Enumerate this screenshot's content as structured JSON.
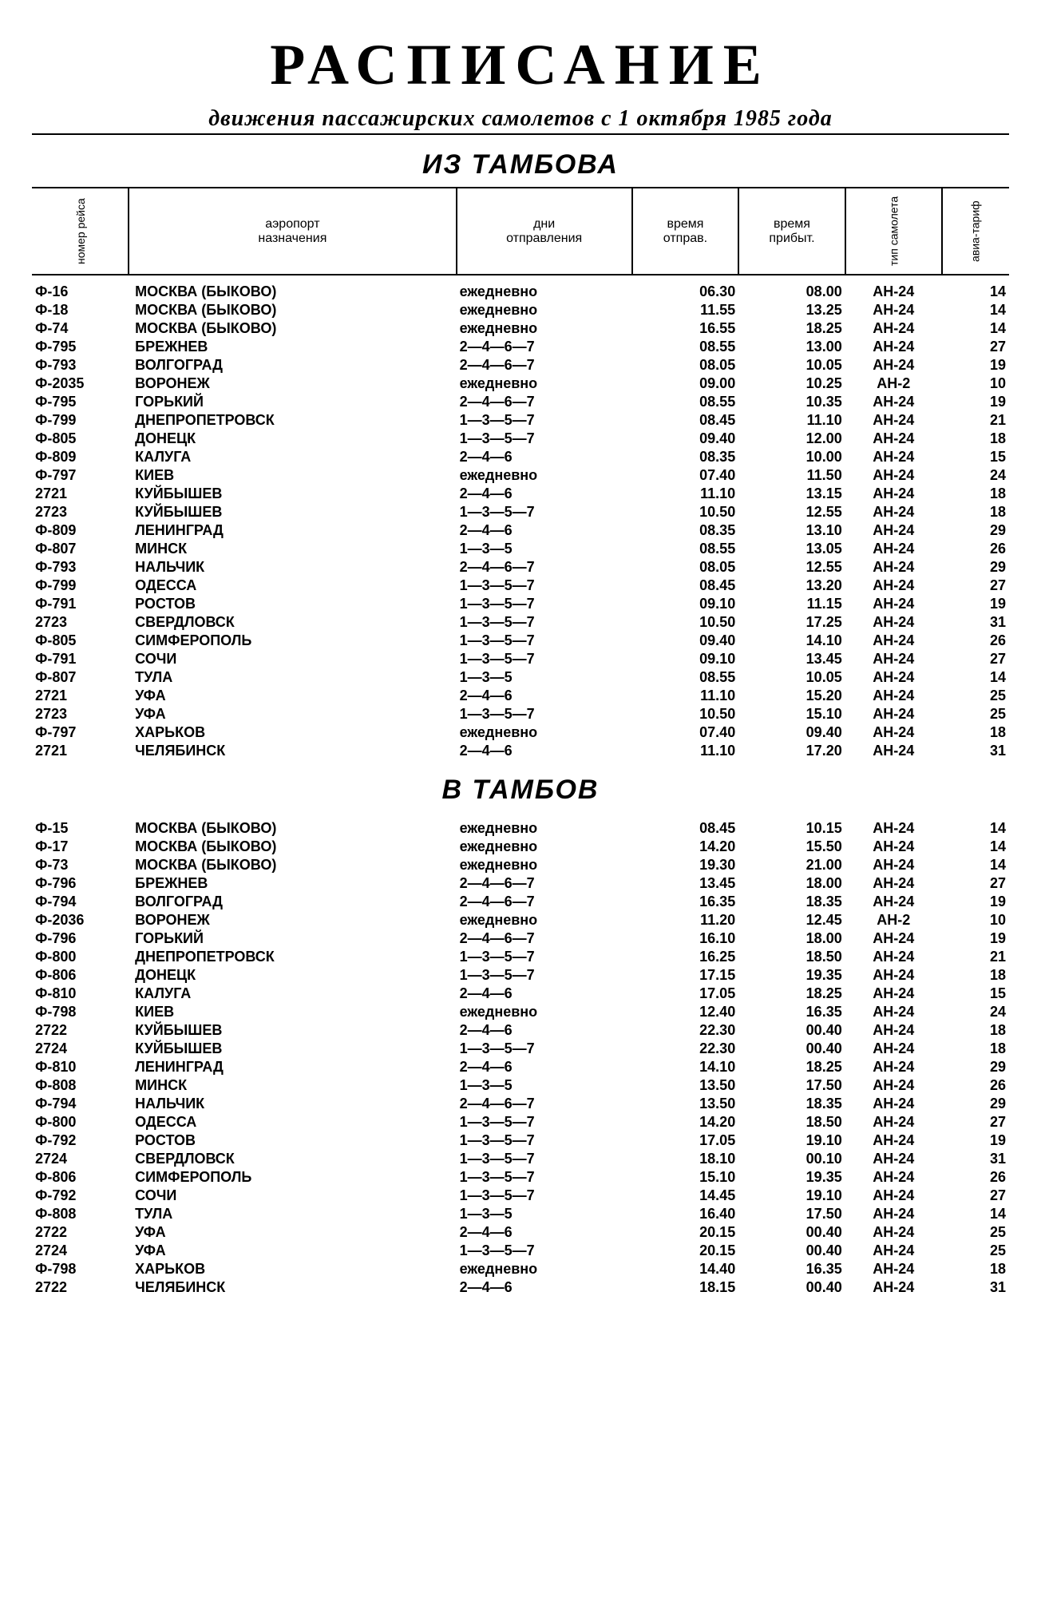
{
  "title": "РАСПИСАНИЕ",
  "subtitle": "движения пассажирских самолетов с 1 октября 1985 года",
  "section_out": "ИЗ ТАМБОВА",
  "section_in": "В ТАМБОВ",
  "columns": {
    "flight": "номер рейса",
    "dest_top": "аэропорт",
    "dest_bot": "назначения",
    "days_top": "дни",
    "days_bot": "отправления",
    "dep_top": "время",
    "dep_bot": "отправ.",
    "arr_top": "время",
    "arr_bot": "прибыт.",
    "type": "тип самолета",
    "fare": "авиа-тариф"
  },
  "out_rows": [
    [
      "Ф-16",
      "МОСКВА (БЫКОВО)",
      "ежедневно",
      "06.30",
      "08.00",
      "АН-24",
      "14"
    ],
    [
      "Ф-18",
      "МОСКВА (БЫКОВО)",
      "ежедневно",
      "11.55",
      "13.25",
      "АН-24",
      "14"
    ],
    [
      "Ф-74",
      "МОСКВА (БЫКОВО)",
      "ежедневно",
      "16.55",
      "18.25",
      "АН-24",
      "14"
    ],
    [
      "Ф-795",
      "БРЕЖНЕВ",
      "2—4—6—7",
      "08.55",
      "13.00",
      "АН-24",
      "27"
    ],
    [
      "Ф-793",
      "ВОЛГОГРАД",
      "2—4—6—7",
      "08.05",
      "10.05",
      "АН-24",
      "19"
    ],
    [
      "Ф-2035",
      "ВОРОНЕЖ",
      "ежедневно",
      "09.00",
      "10.25",
      "АН-2",
      "10"
    ],
    [
      "Ф-795",
      "ГОРЬКИЙ",
      "2—4—6—7",
      "08.55",
      "10.35",
      "АН-24",
      "19"
    ],
    [
      "Ф-799",
      "ДНЕПРОПЕТРОВСК",
      "1—3—5—7",
      "08.45",
      "11.10",
      "АН-24",
      "21"
    ],
    [
      "Ф-805",
      "ДОНЕЦК",
      "1—3—5—7",
      "09.40",
      "12.00",
      "АН-24",
      "18"
    ],
    [
      "Ф-809",
      "КАЛУГА",
      "2—4—6",
      "08.35",
      "10.00",
      "АН-24",
      "15"
    ],
    [
      "Ф-797",
      "КИЕВ",
      "ежедневно",
      "07.40",
      "11.50",
      "АН-24",
      "24"
    ],
    [
      "2721",
      "КУЙБЫШЕВ",
      "2—4—6",
      "11.10",
      "13.15",
      "АН-24",
      "18"
    ],
    [
      "2723",
      "КУЙБЫШЕВ",
      "1—3—5—7",
      "10.50",
      "12.55",
      "АН-24",
      "18"
    ],
    [
      "Ф-809",
      "ЛЕНИНГРАД",
      "2—4—6",
      "08.35",
      "13.10",
      "АН-24",
      "29"
    ],
    [
      "Ф-807",
      "МИНСК",
      "1—3—5",
      "08.55",
      "13.05",
      "АН-24",
      "26"
    ],
    [
      "Ф-793",
      "НАЛЬЧИК",
      "2—4—6—7",
      "08.05",
      "12.55",
      "АН-24",
      "29"
    ],
    [
      "Ф-799",
      "ОДЕССА",
      "1—3—5—7",
      "08.45",
      "13.20",
      "АН-24",
      "27"
    ],
    [
      "Ф-791",
      "РОСТОВ",
      "1—3—5—7",
      "09.10",
      "11.15",
      "АН-24",
      "19"
    ],
    [
      "2723",
      "СВЕРДЛОВСК",
      "1—3—5—7",
      "10.50",
      "17.25",
      "АН-24",
      "31"
    ],
    [
      "Ф-805",
      "СИМФЕРОПОЛЬ",
      "1—3—5—7",
      "09.40",
      "14.10",
      "АН-24",
      "26"
    ],
    [
      "Ф-791",
      "СОЧИ",
      "1—3—5—7",
      "09.10",
      "13.45",
      "АН-24",
      "27"
    ],
    [
      "Ф-807",
      "ТУЛА",
      "1—3—5",
      "08.55",
      "10.05",
      "АН-24",
      "14"
    ],
    [
      "2721",
      "УФА",
      "2—4—6",
      "11.10",
      "15.20",
      "АН-24",
      "25"
    ],
    [
      "2723",
      "УФА",
      "1—3—5—7",
      "10.50",
      "15.10",
      "АН-24",
      "25"
    ],
    [
      "Ф-797",
      "ХАРЬКОВ",
      "ежедневно",
      "07.40",
      "09.40",
      "АН-24",
      "18"
    ],
    [
      "2721",
      "ЧЕЛЯБИНСК",
      "2—4—6",
      "11.10",
      "17.20",
      "АН-24",
      "31"
    ]
  ],
  "in_rows": [
    [
      "Ф-15",
      "МОСКВА (БЫКОВО)",
      "ежедневно",
      "08.45",
      "10.15",
      "АН-24",
      "14"
    ],
    [
      "Ф-17",
      "МОСКВА (БЫКОВО)",
      "ежедневно",
      "14.20",
      "15.50",
      "АН-24",
      "14"
    ],
    [
      "Ф-73",
      "МОСКВА (БЫКОВО)",
      "ежедневно",
      "19.30",
      "21.00",
      "АН-24",
      "14"
    ],
    [
      "Ф-796",
      "БРЕЖНЕВ",
      "2—4—6—7",
      "13.45",
      "18.00",
      "АН-24",
      "27"
    ],
    [
      "Ф-794",
      "ВОЛГОГРАД",
      "2—4—6—7",
      "16.35",
      "18.35",
      "АН-24",
      "19"
    ],
    [
      "Ф-2036",
      "ВОРОНЕЖ",
      "ежедневно",
      "11.20",
      "12.45",
      "АН-2",
      "10"
    ],
    [
      "Ф-796",
      "ГОРЬКИЙ",
      "2—4—6—7",
      "16.10",
      "18.00",
      "АН-24",
      "19"
    ],
    [
      "Ф-800",
      "ДНЕПРОПЕТРОВСК",
      "1—3—5—7",
      "16.25",
      "18.50",
      "АН-24",
      "21"
    ],
    [
      "Ф-806",
      "ДОНЕЦК",
      "1—3—5—7",
      "17.15",
      "19.35",
      "АН-24",
      "18"
    ],
    [
      "Ф-810",
      "КАЛУГА",
      "2—4—6",
      "17.05",
      "18.25",
      "АН-24",
      "15"
    ],
    [
      "Ф-798",
      "КИЕВ",
      "ежедневно",
      "12.40",
      "16.35",
      "АН-24",
      "24"
    ],
    [
      "2722",
      "КУЙБЫШЕВ",
      "2—4—6",
      "22.30",
      "00.40",
      "АН-24",
      "18"
    ],
    [
      "2724",
      "КУЙБЫШЕВ",
      "1—3—5—7",
      "22.30",
      "00.40",
      "АН-24",
      "18"
    ],
    [
      "Ф-810",
      "ЛЕНИНГРАД",
      "2—4—6",
      "14.10",
      "18.25",
      "АН-24",
      "29"
    ],
    [
      "Ф-808",
      "МИНСК",
      "1—3—5",
      "13.50",
      "17.50",
      "АН-24",
      "26"
    ],
    [
      "Ф-794",
      "НАЛЬЧИК",
      "2—4—6—7",
      "13.50",
      "18.35",
      "АН-24",
      "29"
    ],
    [
      "Ф-800",
      "ОДЕССА",
      "1—3—5—7",
      "14.20",
      "18.50",
      "АН-24",
      "27"
    ],
    [
      "Ф-792",
      "РОСТОВ",
      "1—3—5—7",
      "17.05",
      "19.10",
      "АН-24",
      "19"
    ],
    [
      "2724",
      "СВЕРДЛОВСК",
      "1—3—5—7",
      "18.10",
      "00.10",
      "АН-24",
      "31"
    ],
    [
      "Ф-806",
      "СИМФЕРОПОЛЬ",
      "1—3—5—7",
      "15.10",
      "19.35",
      "АН-24",
      "26"
    ],
    [
      "Ф-792",
      "СОЧИ",
      "1—3—5—7",
      "14.45",
      "19.10",
      "АН-24",
      "27"
    ],
    [
      "Ф-808",
      "ТУЛА",
      "1—3—5",
      "16.40",
      "17.50",
      "АН-24",
      "14"
    ],
    [
      "2722",
      "УФА",
      "2—4—6",
      "20.15",
      "00.40",
      "АН-24",
      "25"
    ],
    [
      "2724",
      "УФА",
      "1—3—5—7",
      "20.15",
      "00.40",
      "АН-24",
      "25"
    ],
    [
      "Ф-798",
      "ХАРЬКОВ",
      "ежедневно",
      "14.40",
      "16.35",
      "АН-24",
      "18"
    ],
    [
      "2722",
      "ЧЕЛЯБИНСК",
      "2—4—6",
      "18.15",
      "00.40",
      "АН-24",
      "31"
    ]
  ]
}
